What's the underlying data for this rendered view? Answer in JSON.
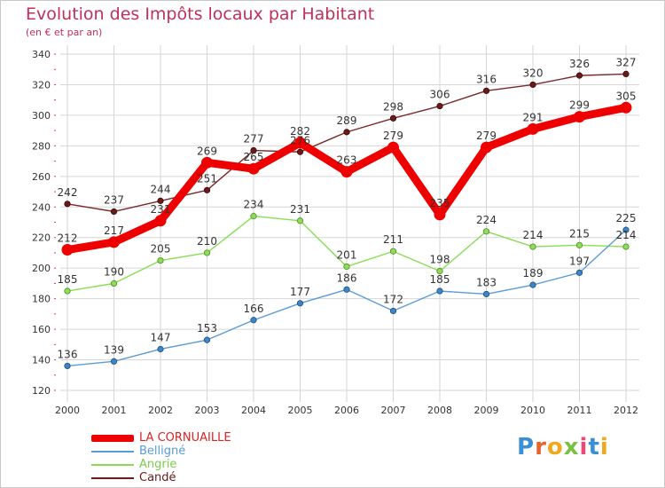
{
  "header": {
    "title": "Evolution des Impôts locaux par Habitant",
    "subtitle": "(en € et par an)"
  },
  "colors": {
    "title": "#c0305a",
    "grid": "#d6d6d6",
    "axis_text": "#333333",
    "LA CORNUAILLE": "#ee0000",
    "Belligné": "#5b9bd5",
    "Angrie": "#88dd55",
    "Candé": "#6b1a1a"
  },
  "logo": {
    "text": "Proxiti"
  },
  "chart_data": {
    "type": "line",
    "title": "Evolution des Impôts locaux par Habitant",
    "subtitle": "(en € et par an)",
    "xlabel": "",
    "ylabel": "",
    "x": [
      "2000",
      "2001",
      "2002",
      "2003",
      "2004",
      "2005",
      "2006",
      "2007",
      "2008",
      "2009",
      "2010",
      "2011",
      "2012"
    ],
    "ylim": [
      120,
      340
    ],
    "yticks": [
      120,
      140,
      160,
      180,
      200,
      220,
      240,
      260,
      280,
      300,
      320,
      340
    ],
    "grid": true,
    "legend_position": "bottom-left",
    "series": [
      {
        "name": "LA CORNUAILLE",
        "values": [
          212,
          217,
          231,
          269,
          265,
          282,
          263,
          279,
          235,
          279,
          291,
          299,
          305
        ],
        "labels": [
          "212",
          "217",
          "231",
          "269",
          "265",
          "282",
          "263",
          "279",
          "235",
          "279",
          "291",
          "299",
          "305"
        ]
      },
      {
        "name": "Belligné",
        "values": [
          136,
          139,
          147,
          153,
          166,
          177,
          186,
          172,
          185,
          183,
          189,
          197,
          225
        ],
        "labels": [
          "136",
          "139",
          "147",
          "153",
          "166",
          "177",
          "186",
          "172",
          "185",
          "183",
          "189",
          "197",
          "225"
        ]
      },
      {
        "name": "Angrie",
        "values": [
          185,
          190,
          205,
          210,
          234,
          231,
          201,
          211,
          198,
          224,
          214,
          215,
          214
        ],
        "labels": [
          "185",
          "190",
          "205",
          "210",
          "234",
          "231",
          "201",
          "211",
          "198",
          "224",
          "214",
          "215",
          "214"
        ]
      },
      {
        "name": "Candé",
        "values": [
          242,
          237,
          244,
          251,
          277,
          276,
          289,
          298,
          306,
          316,
          320,
          326,
          327
        ],
        "labels": [
          "242",
          "237",
          "244",
          "251",
          "277",
          "276",
          "289",
          "298",
          "306",
          "316",
          "320",
          "326",
          "327"
        ]
      }
    ]
  }
}
